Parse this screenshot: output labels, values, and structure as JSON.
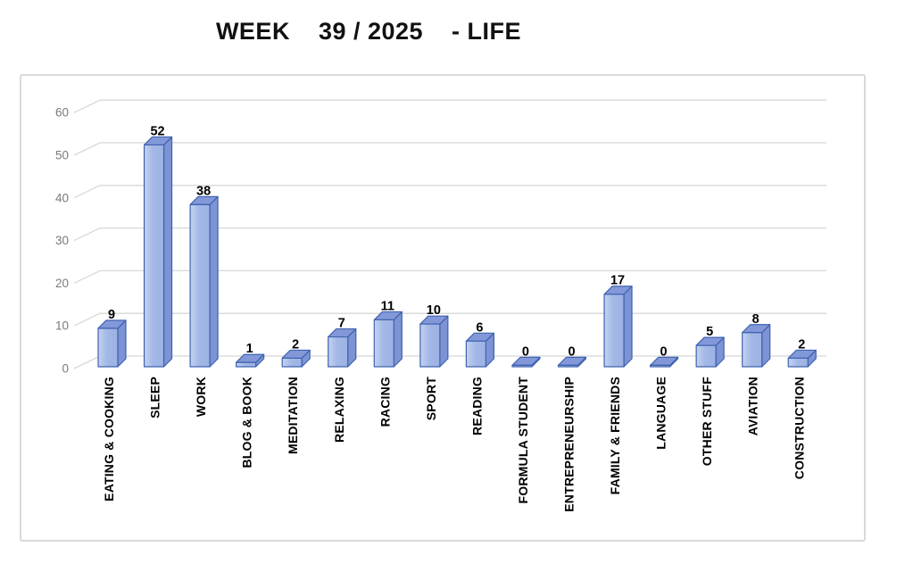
{
  "page": {
    "background": "#FFFFFF"
  },
  "chart_data": {
    "type": "bar",
    "style": "excel-3d-bar",
    "title": "WEEK    39 / 2025    - LIFE",
    "categories": [
      "EATING & COOKING",
      "SLEEP",
      "WORK",
      "BLOG & BOOK",
      "MEDITATION",
      "RELAXING",
      "RACING",
      "SPORT",
      "READING",
      "FORMULA STUDENT",
      "ENTREPRENEURSHIP",
      "FAMILY & FRIENDS",
      "LANGUAGE",
      "OTHER STUFF",
      "AVIATION",
      "CONSTRUCTION"
    ],
    "values": [
      9,
      52,
      38,
      1,
      2,
      7,
      11,
      10,
      6,
      0,
      0,
      17,
      0,
      5,
      8,
      2
    ],
    "data_labels": true,
    "xlabel": "",
    "ylabel": "",
    "ylim": [
      0,
      60
    ],
    "yticks": [
      0,
      10,
      20,
      30,
      40,
      50,
      60
    ],
    "grid": true,
    "legend_position": "none",
    "colors": {
      "bar_front_light": "#C6D3F0",
      "bar_front": "#A3B8E6",
      "bar_front_dark": "#9DB2E3",
      "bar_top": "#8398D8",
      "bar_side": "#7D93D3",
      "bar_border": "#3F63B0",
      "gridline": "#D8D8D8",
      "axis_label": "#7A7A7A",
      "category_label": "#000000",
      "value_label": "#000000",
      "frame_border": "#D9D9D9",
      "background": "#FFFFFF"
    }
  }
}
